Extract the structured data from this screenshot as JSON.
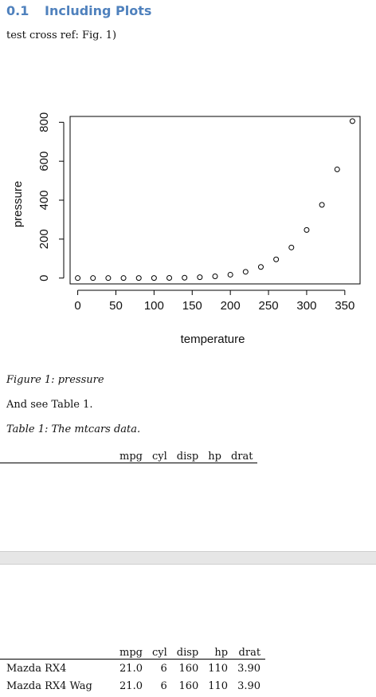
{
  "section": {
    "number": "0.1",
    "title": "Including Plots"
  },
  "cross_ref_text": "test cross ref: Fig. 1)",
  "figure_caption": "Figure 1: pressure",
  "see_table_text": "And see Table 1.",
  "table_caption": "Table 1: The mtcars data.",
  "table": {
    "columns": [
      "mpg",
      "cyl",
      "disp",
      "hp",
      "drat"
    ],
    "rows": [
      [
        "Mazda RX4",
        "21.0",
        "6",
        "160",
        "110",
        "3.90"
      ],
      [
        "Mazda RX4 Wag",
        "21.0",
        "6",
        "160",
        "110",
        "3.90"
      ]
    ]
  },
  "chart_data": {
    "type": "scatter",
    "xlabel": "temperature",
    "ylabel": "pressure",
    "xlim": [
      -10,
      370
    ],
    "ylim": [
      -30,
      830
    ],
    "xticks": [
      0,
      50,
      100,
      150,
      200,
      250,
      300,
      350
    ],
    "yticks": [
      0,
      200,
      400,
      600,
      800
    ],
    "grid": false,
    "marker": "open-circle",
    "x": [
      0,
      20,
      40,
      60,
      80,
      100,
      120,
      140,
      160,
      180,
      200,
      220,
      240,
      260,
      280,
      300,
      320,
      340,
      360
    ],
    "y": [
      0.0002,
      0.0012,
      0.006,
      0.03,
      0.09,
      0.27,
      0.75,
      1.85,
      4.2,
      8.8,
      17.3,
      32.1,
      57.0,
      96.0,
      157.0,
      247.0,
      376.0,
      558.0,
      806.0
    ]
  }
}
